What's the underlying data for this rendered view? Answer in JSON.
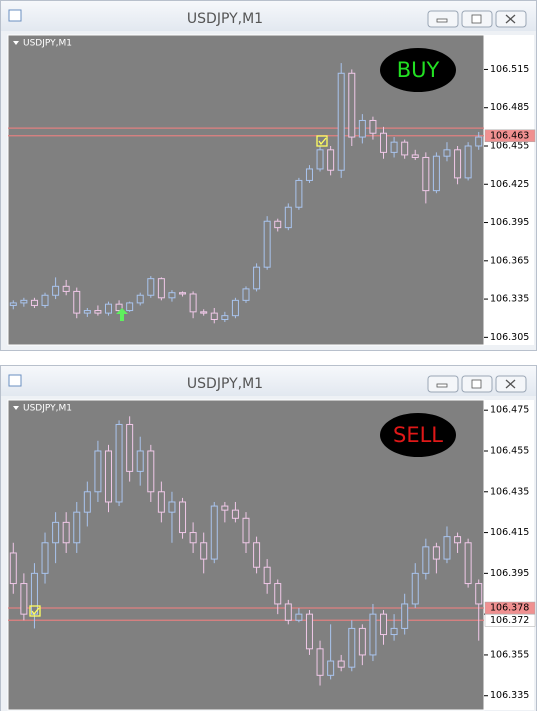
{
  "chart_data": [
    {
      "type": "candlestick",
      "title": "USDJPY,M1",
      "symbol_label": "USDJPY,M1",
      "signal": "BUY",
      "signal_color": "#22e022",
      "up_color": "#a9c4ee",
      "down_color": "#f0c8e8",
      "background": "#808080",
      "ylim": [
        106.299,
        106.542
      ],
      "yticks": [
        106.515,
        106.485,
        106.455,
        106.425,
        106.395,
        106.365,
        106.335,
        106.305
      ],
      "levels": [
        106.469,
        106.463
      ],
      "level_color": "#e08080",
      "price_labels": [
        106.463
      ],
      "price_label_colors": [
        "#f09090"
      ],
      "open": [
        106.33,
        106.332,
        106.334,
        106.33,
        106.338,
        106.345,
        106.341,
        106.324,
        106.326,
        106.324,
        106.331,
        106.326,
        106.332,
        106.338,
        106.351,
        106.336,
        106.34,
        106.339,
        106.325,
        106.324,
        106.319,
        106.322,
        106.334,
        106.343,
        106.36,
        106.396,
        106.391,
        106.407,
        106.428,
        106.437,
        106.452,
        106.436,
        106.512,
        106.462,
        106.475,
        106.465,
        106.45,
        106.458,
        106.448,
        106.446,
        106.42,
        106.447,
        106.452,
        106.43,
        106.455
      ],
      "high": [
        106.334,
        106.336,
        106.336,
        106.34,
        106.352,
        106.35,
        106.344,
        106.328,
        106.33,
        106.333,
        106.334,
        106.333,
        106.34,
        106.353,
        106.352,
        106.342,
        106.341,
        106.341,
        106.327,
        106.328,
        106.325,
        106.336,
        106.345,
        106.363,
        106.4,
        106.398,
        106.41,
        106.43,
        106.44,
        106.455,
        106.455,
        106.52,
        106.515,
        106.48,
        106.478,
        106.47,
        106.462,
        106.46,
        106.452,
        106.45,
        106.45,
        106.458,
        106.455,
        106.458,
        106.466
      ],
      "low": [
        106.327,
        106.329,
        106.328,
        106.328,
        106.335,
        106.338,
        106.32,
        106.321,
        106.322,
        106.322,
        106.324,
        106.325,
        106.33,
        106.336,
        106.334,
        106.333,
        106.337,
        106.32,
        106.322,
        106.316,
        106.317,
        106.32,
        106.332,
        106.341,
        106.358,
        106.388,
        106.389,
        106.405,
        106.426,
        106.435,
        106.432,
        106.43,
        106.455,
        106.457,
        106.46,
        106.445,
        106.446,
        106.445,
        106.444,
        106.41,
        106.418,
        106.443,
        106.425,
        106.428,
        106.452
      ],
      "close": [
        106.332,
        106.334,
        106.33,
        106.338,
        106.345,
        106.341,
        106.324,
        106.326,
        106.324,
        106.331,
        106.326,
        106.332,
        106.338,
        106.351,
        106.336,
        106.34,
        106.339,
        106.325,
        106.324,
        106.319,
        106.322,
        106.334,
        106.343,
        106.36,
        106.396,
        106.391,
        106.407,
        106.428,
        106.437,
        106.452,
        106.436,
        106.512,
        106.462,
        106.475,
        106.465,
        106.45,
        106.458,
        106.448,
        106.446,
        106.42,
        106.447,
        106.452,
        106.43,
        106.455,
        106.462
      ]
    },
    {
      "type": "candlestick",
      "title": "USDJPY,M1",
      "symbol_label": "USDJPY,M1",
      "signal": "SELL",
      "signal_color": "#e01818",
      "up_color": "#a9c4ee",
      "down_color": "#f0c8e8",
      "background": "#808080",
      "ylim": [
        106.328,
        106.48
      ],
      "yticks": [
        106.475,
        106.455,
        106.435,
        106.415,
        106.395,
        106.375,
        106.355,
        106.335
      ],
      "levels": [
        106.378,
        106.372
      ],
      "level_color": "#e08080",
      "price_labels": [
        106.378,
        106.372
      ],
      "price_label_colors": [
        "#f09090",
        "#ffffff"
      ],
      "open": [
        106.405,
        106.39,
        106.375,
        106.395,
        106.41,
        106.42,
        106.41,
        106.425,
        106.435,
        106.455,
        106.43,
        106.468,
        106.445,
        106.455,
        106.435,
        106.425,
        106.43,
        106.415,
        106.41,
        106.402,
        106.428,
        106.426,
        106.422,
        106.41,
        106.398,
        106.39,
        106.38,
        106.372,
        106.375,
        106.358,
        106.345,
        106.352,
        106.349,
        106.368,
        106.355,
        106.375,
        106.365,
        106.368,
        106.38,
        106.395,
        106.408,
        106.402,
        106.413,
        106.41,
        106.39
      ],
      "high": [
        106.41,
        106.395,
        106.4,
        106.415,
        106.425,
        106.425,
        106.43,
        106.44,
        106.46,
        106.458,
        106.47,
        106.472,
        106.462,
        106.458,
        106.44,
        106.435,
        106.432,
        106.42,
        106.415,
        106.43,
        106.43,
        106.43,
        106.425,
        106.413,
        106.402,
        106.392,
        106.382,
        106.378,
        106.377,
        106.362,
        106.37,
        106.355,
        106.372,
        106.37,
        106.38,
        106.377,
        106.375,
        106.385,
        106.4,
        106.412,
        106.41,
        106.418,
        106.415,
        106.412,
        106.392
      ],
      "low": [
        106.385,
        106.372,
        106.368,
        106.39,
        106.4,
        106.405,
        106.405,
        106.418,
        106.43,
        106.425,
        106.428,
        106.44,
        106.438,
        106.43,
        106.42,
        106.41,
        106.412,
        106.405,
        106.395,
        106.4,
        106.42,
        106.42,
        106.405,
        106.395,
        106.385,
        106.375,
        106.37,
        106.371,
        106.355,
        106.34,
        106.343,
        106.347,
        106.347,
        106.35,
        106.352,
        106.36,
        106.362,
        106.365,
        106.378,
        106.392,
        106.395,
        106.4,
        106.405,
        106.388,
        106.362
      ],
      "close": [
        106.39,
        106.375,
        106.395,
        106.41,
        106.42,
        106.41,
        106.425,
        106.435,
        106.455,
        106.43,
        106.468,
        106.445,
        106.455,
        106.435,
        106.425,
        106.43,
        106.415,
        106.41,
        106.402,
        106.428,
        106.426,
        106.422,
        106.41,
        106.398,
        106.39,
        106.38,
        106.372,
        106.375,
        106.358,
        106.345,
        106.352,
        106.349,
        106.368,
        106.355,
        106.375,
        106.365,
        106.368,
        106.38,
        106.395,
        106.408,
        106.402,
        106.413,
        106.41,
        106.39,
        106.38
      ]
    }
  ]
}
